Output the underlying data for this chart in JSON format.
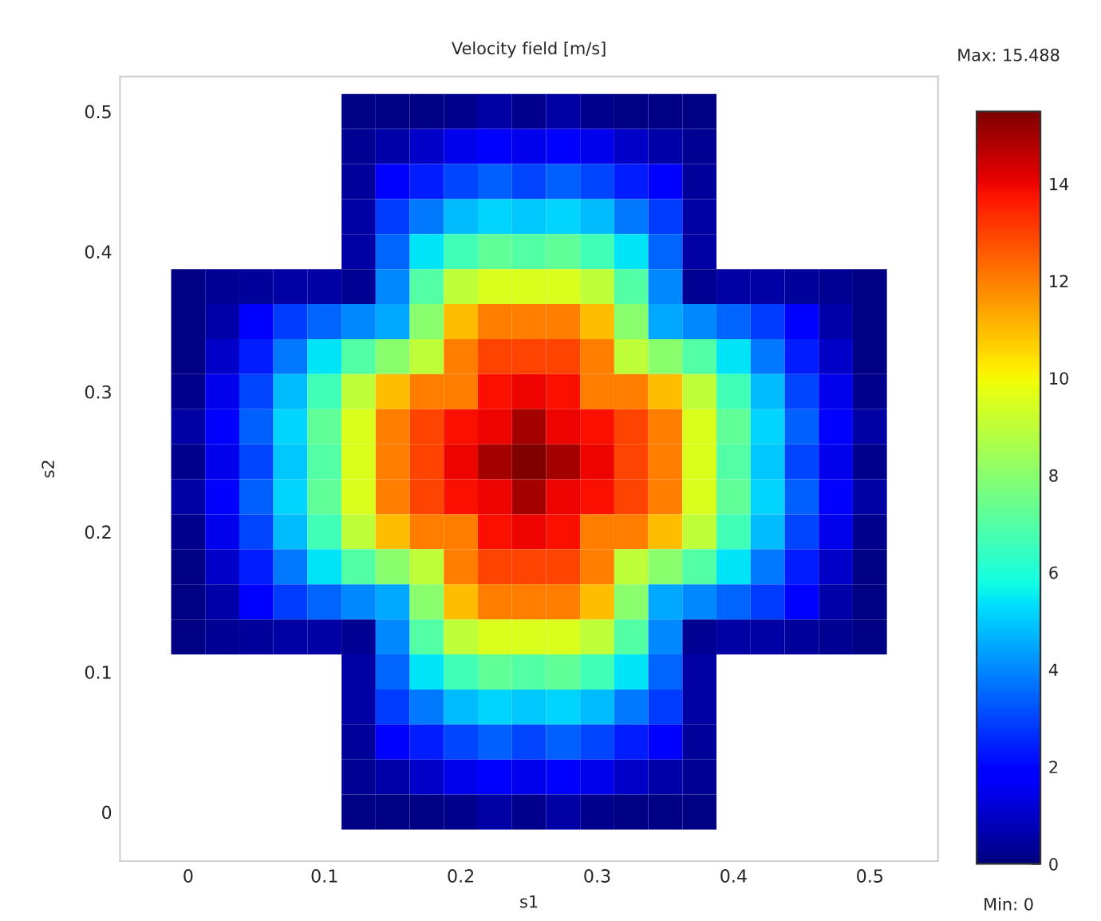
{
  "chart_data": {
    "type": "heatmap",
    "title": "Velocity field [m/s]",
    "xlabel": "s1",
    "ylabel": "s2",
    "x": [
      0,
      0.025,
      0.05,
      0.075,
      0.1,
      0.125,
      0.15,
      0.175,
      0.2,
      0.225,
      0.25,
      0.275,
      0.3,
      0.325,
      0.35,
      0.375,
      0.4,
      0.425,
      0.45,
      0.475,
      0.5
    ],
    "y": [
      0.5,
      0.475,
      0.45,
      0.425,
      0.4,
      0.375,
      0.35,
      0.325,
      0.3,
      0.275,
      0.25,
      0.225,
      0.2,
      0.175,
      0.15,
      0.125,
      0.1,
      0.075,
      0.05,
      0.025,
      0
    ],
    "xlim": [
      -0.05,
      0.55
    ],
    "ylim": [
      -0.035,
      0.525
    ],
    "xticks": [
      0,
      0.1,
      0.2,
      0.3,
      0.4,
      0.5
    ],
    "yticks": [
      0,
      0.1,
      0.2,
      0.3,
      0.4,
      0.5
    ],
    "clim": [
      0,
      15.488
    ],
    "cticks": [
      0,
      2,
      4,
      6,
      8,
      10,
      12,
      14
    ],
    "annotations": [
      "Max: 15.488",
      "Min: 0"
    ],
    "cells": [
      [
        null,
        null,
        null,
        null,
        null,
        0.1,
        0.1,
        0.1,
        0.2,
        0.5,
        0.2,
        0.5,
        0.2,
        0.1,
        0.1,
        0.1,
        null,
        null,
        null,
        null,
        null
      ],
      [
        null,
        null,
        null,
        null,
        null,
        0.3,
        0.6,
        1,
        1.5,
        1.8,
        1.5,
        1.8,
        1.5,
        1,
        0.6,
        0.3,
        null,
        null,
        null,
        null,
        null
      ],
      [
        null,
        null,
        null,
        null,
        null,
        0.4,
        1.8,
        2.4,
        3,
        3.4,
        3,
        3.4,
        3,
        2.4,
        1.8,
        0.4,
        null,
        null,
        null,
        null,
        null
      ],
      [
        null,
        null,
        null,
        null,
        null,
        0.5,
        2.9,
        3.8,
        4.8,
        5.2,
        5,
        5.2,
        4.8,
        3.8,
        2.9,
        0.5,
        null,
        null,
        null,
        null,
        null
      ],
      [
        null,
        null,
        null,
        null,
        null,
        0.5,
        3.5,
        5.4,
        6.6,
        7.2,
        7,
        7.2,
        6.6,
        5.4,
        3.5,
        0.5,
        null,
        null,
        null,
        null,
        null
      ],
      [
        0.1,
        0.3,
        0.4,
        0.5,
        0.5,
        0.3,
        4,
        7,
        9,
        9.5,
        9.5,
        9.5,
        9,
        7,
        4,
        0.3,
        0.5,
        0.5,
        0.4,
        0.3,
        0.1
      ],
      [
        0.1,
        0.6,
        1.8,
        2.9,
        3.5,
        4,
        4.5,
        8,
        11,
        12,
        12,
        12,
        11,
        8,
        4.5,
        4,
        3.5,
        2.9,
        1.8,
        0.6,
        0.1
      ],
      [
        0.1,
        1,
        2.4,
        3.8,
        5.4,
        7,
        8,
        9,
        12,
        13,
        13,
        13,
        12,
        9,
        8,
        7,
        5.4,
        3.8,
        2.4,
        1,
        0.1
      ],
      [
        0.2,
        1.5,
        3,
        4.8,
        6.6,
        9,
        11,
        12,
        12,
        13.8,
        14,
        13.8,
        12,
        12,
        11,
        9,
        6.6,
        4.8,
        3,
        1.5,
        0.2
      ],
      [
        0.5,
        1.8,
        3.4,
        5.2,
        7.2,
        9.5,
        12,
        13,
        13.8,
        14,
        15,
        14,
        13.8,
        13,
        12,
        9.5,
        7.2,
        5.2,
        3.4,
        1.8,
        0.5
      ],
      [
        0.2,
        1.5,
        3,
        5,
        7,
        9.5,
        12,
        13,
        14,
        15,
        15.5,
        15,
        14,
        13,
        12,
        9.5,
        7,
        5,
        3,
        1.5,
        0.2
      ],
      [
        0.5,
        1.8,
        3.4,
        5.2,
        7.2,
        9.5,
        12,
        13,
        13.8,
        14,
        15,
        14,
        13.8,
        13,
        12,
        9.5,
        7.2,
        5.2,
        3.4,
        1.8,
        0.5
      ],
      [
        0.2,
        1.5,
        3,
        4.8,
        6.6,
        9,
        11,
        12,
        12,
        13.8,
        14,
        13.8,
        12,
        12,
        11,
        9,
        6.6,
        4.8,
        3,
        1.5,
        0.2
      ],
      [
        0.1,
        1,
        2.4,
        3.8,
        5.4,
        7,
        8,
        9,
        12,
        13,
        13,
        13,
        12,
        9,
        8,
        7,
        5.4,
        3.8,
        2.4,
        1,
        0.1
      ],
      [
        0.1,
        0.6,
        1.8,
        2.9,
        3.5,
        4,
        4.5,
        8,
        11,
        12,
        12,
        12,
        11,
        8,
        4.5,
        4,
        3.5,
        2.9,
        1.8,
        0.6,
        0.1
      ],
      [
        0.1,
        0.3,
        0.4,
        0.5,
        0.5,
        0.3,
        4,
        7,
        9,
        9.5,
        9.5,
        9.5,
        9,
        7,
        4,
        0.3,
        0.5,
        0.5,
        0.4,
        0.3,
        0.1
      ],
      [
        null,
        null,
        null,
        null,
        null,
        0.5,
        3.5,
        5.4,
        6.6,
        7.2,
        7,
        7.2,
        6.6,
        5.4,
        3.5,
        0.5,
        null,
        null,
        null,
        null,
        null
      ],
      [
        null,
        null,
        null,
        null,
        null,
        0.5,
        2.9,
        3.8,
        4.8,
        5.2,
        5,
        5.2,
        4.8,
        3.8,
        2.9,
        0.5,
        null,
        null,
        null,
        null,
        null
      ],
      [
        null,
        null,
        null,
        null,
        null,
        0.4,
        1.8,
        2.4,
        3,
        3.4,
        3,
        3.4,
        3,
        2.4,
        1.8,
        0.4,
        null,
        null,
        null,
        null,
        null
      ],
      [
        null,
        null,
        null,
        null,
        null,
        0.3,
        0.6,
        1,
        1.5,
        1.8,
        1.5,
        1.8,
        1.5,
        1,
        0.6,
        0.3,
        null,
        null,
        null,
        null,
        null
      ],
      [
        null,
        null,
        null,
        null,
        null,
        0.1,
        0.1,
        0.1,
        0.2,
        0.5,
        0.2,
        0.5,
        0.2,
        0.1,
        0.1,
        0.1,
        null,
        null,
        null,
        null,
        null
      ]
    ]
  }
}
